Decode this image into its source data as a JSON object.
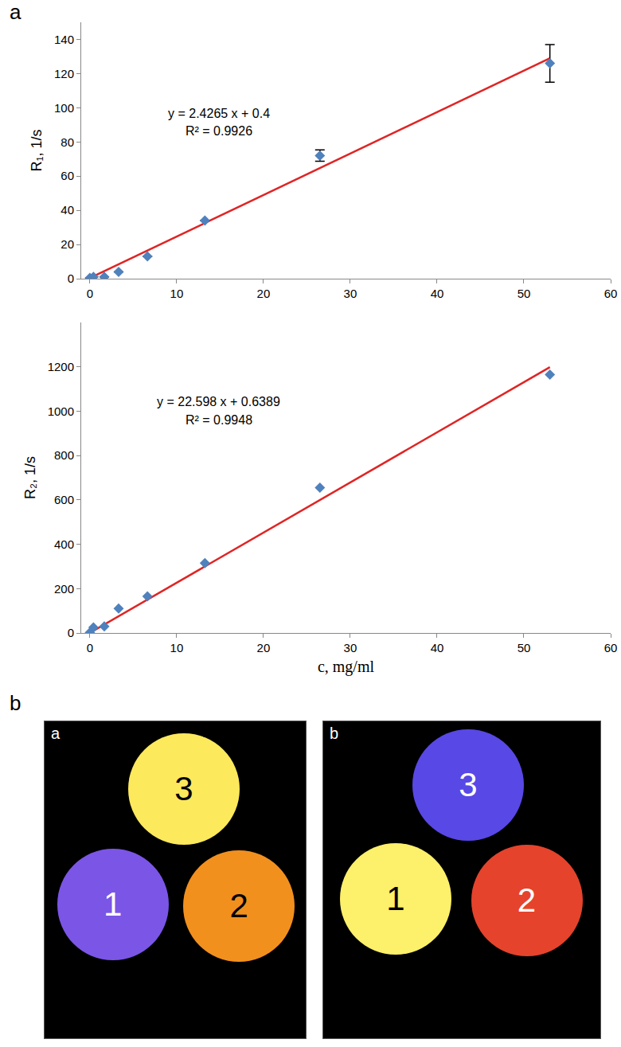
{
  "chart_data": [
    {
      "type": "scatter",
      "x": [
        0,
        0.41,
        1.66,
        3.31,
        6.63,
        13.25,
        26.5,
        53
      ],
      "values": [
        0.5,
        1,
        1,
        4,
        13,
        34,
        72,
        126
      ],
      "error": [
        null,
        null,
        null,
        null,
        null,
        null,
        3.3,
        11
      ],
      "color": "#4f81bd",
      "marker": "diamond",
      "fit": {
        "slope": 2.4265,
        "intercept": 0.4,
        "x": [
          0,
          53
        ],
        "color": "#e02424"
      },
      "annotations": [
        "y = 2.4265 x + 0.4",
        "R² = 0.9926"
      ],
      "y_label": "R₁, 1/s",
      "xlim": [
        -1,
        60
      ],
      "xticks": [
        0,
        10,
        20,
        30,
        40,
        50,
        60
      ],
      "ylim": [
        0,
        150
      ],
      "yticks": [
        0,
        20,
        40,
        60,
        80,
        100,
        120,
        140
      ],
      "grid": false
    },
    {
      "type": "scatter",
      "x": [
        0,
        0.41,
        1.66,
        3.31,
        6.63,
        13.25,
        26.5,
        53
      ],
      "values": [
        2,
        25,
        30,
        110,
        165,
        315,
        655,
        1165
      ],
      "color": "#4f81bd",
      "marker": "diamond",
      "fit": {
        "slope": 22.598,
        "intercept": 0.6389,
        "x": [
          0,
          53
        ],
        "color": "#e02424"
      },
      "annotations": [
        "y = 22.598 x + 0.6389",
        "R² = 0.9948"
      ],
      "y_label": "R₂, 1/s",
      "x_label": "c, mg/ml",
      "xlim": [
        -1,
        60
      ],
      "xticks": [
        0,
        10,
        20,
        30,
        40,
        50,
        60
      ],
      "ylim": [
        0,
        1400
      ],
      "yticks": [
        0,
        200,
        400,
        600,
        800,
        1000,
        1200
      ],
      "grid": false
    }
  ],
  "panel_labels": [
    "a",
    "b"
  ],
  "images": [
    {
      "label": "a",
      "circles": [
        {
          "label": "3",
          "color": "#fde95c",
          "text_color": "#000000"
        },
        {
          "label": "1",
          "color": "#7b55e6",
          "text_color": "#ffffff"
        },
        {
          "label": "2",
          "color": "#f2901e",
          "text_color": "#000000"
        }
      ]
    },
    {
      "label": "b",
      "circles": [
        {
          "label": "3",
          "color": "#5848e6",
          "text_color": "#ffffff"
        },
        {
          "label": "1",
          "color": "#fdf06a",
          "text_color": "#000000"
        },
        {
          "label": "2",
          "color": "#e5432c",
          "text_color": "#ffffff"
        }
      ]
    }
  ]
}
